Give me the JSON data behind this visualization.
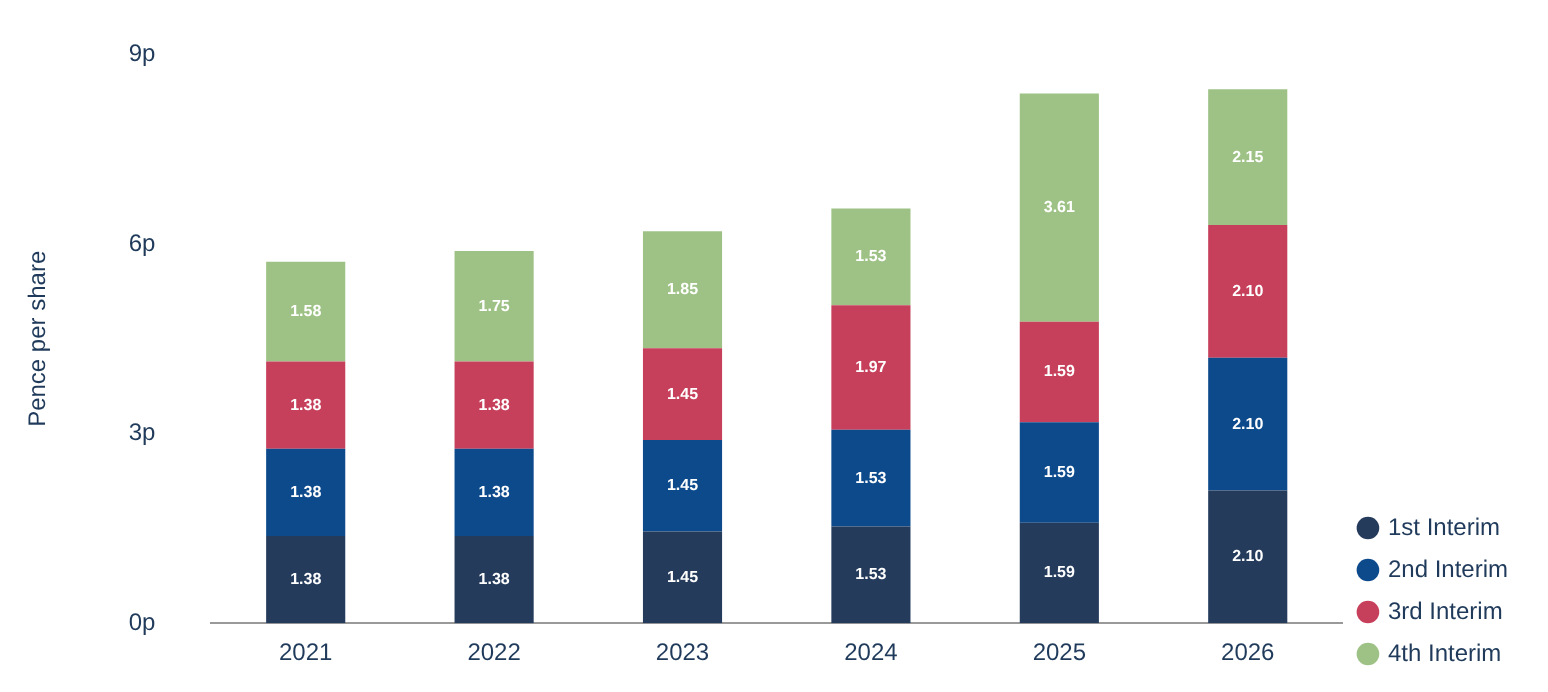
{
  "chart_data": {
    "type": "bar",
    "stacked": true,
    "ylabel": "Pence per share",
    "categories": [
      "2021",
      "2022",
      "2023",
      "2024",
      "2025",
      "2026"
    ],
    "series": [
      {
        "name": "1st Interim",
        "color": "#243b5c",
        "values": [
          1.38,
          1.38,
          1.45,
          1.53,
          1.59,
          2.1
        ]
      },
      {
        "name": "2nd Interim",
        "color": "#0d4a8c",
        "values": [
          1.38,
          1.38,
          1.45,
          1.53,
          1.59,
          2.1
        ]
      },
      {
        "name": "3rd Interim",
        "color": "#c63f5b",
        "values": [
          1.38,
          1.38,
          1.45,
          1.97,
          1.59,
          2.1
        ]
      },
      {
        "name": "4th Interim",
        "color": "#9ec285",
        "values": [
          1.58,
          1.75,
          1.85,
          1.53,
          3.61,
          2.15
        ]
      }
    ],
    "value_labels": [
      [
        "1.38",
        "1.38",
        "1.45",
        "1.53",
        "1.59",
        "2.10"
      ],
      [
        "1.38",
        "1.38",
        "1.45",
        "1.53",
        "1.59",
        "2.10"
      ],
      [
        "1.38",
        "1.38",
        "1.45",
        "1.97",
        "1.59",
        "2.10"
      ],
      [
        "1.58",
        "1.75",
        "1.85",
        "1.53",
        "3.61",
        "2.15"
      ]
    ],
    "ylim": [
      0,
      9
    ],
    "yticks": [
      {
        "value": 0,
        "label": "0p"
      },
      {
        "value": 3,
        "label": "3p"
      },
      {
        "value": 6,
        "label": "6p"
      },
      {
        "value": 9,
        "label": "9p"
      }
    ],
    "grid": false,
    "legend": "bottom right"
  }
}
